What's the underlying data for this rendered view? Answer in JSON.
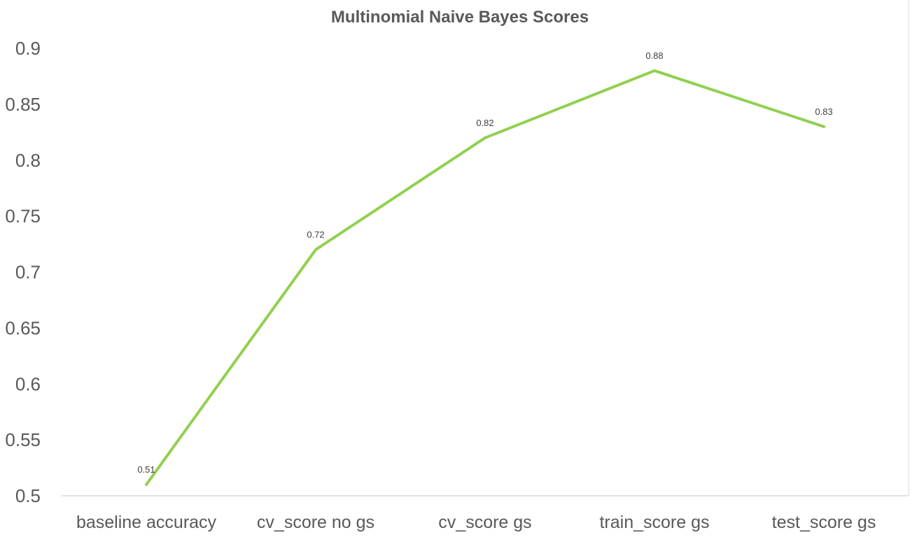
{
  "chart_data": {
    "type": "line",
    "title": "Multinomial Naive Bayes Scores",
    "xlabel": "",
    "ylabel": "",
    "categories": [
      "baseline accuracy",
      "cv_score no gs",
      "cv_score gs",
      "train_score gs",
      "test_score gs"
    ],
    "series": [
      {
        "values": [
          0.51,
          0.72,
          0.82,
          0.88,
          0.83
        ],
        "data_labels": [
          "0.51",
          "0.72",
          "0.82",
          "0.88",
          "0.83"
        ],
        "color": "#92d050"
      }
    ],
    "ylim": [
      0.5,
      0.9
    ],
    "y_ticks": [
      0.5,
      0.55,
      0.6,
      0.65,
      0.7,
      0.75,
      0.8,
      0.85,
      0.9
    ],
    "y_tick_labels": [
      "0.5",
      "0.55",
      "0.6",
      "0.65",
      "0.7",
      "0.75",
      "0.8",
      "0.85",
      "0.9"
    ],
    "grid": false,
    "legend": "none"
  }
}
